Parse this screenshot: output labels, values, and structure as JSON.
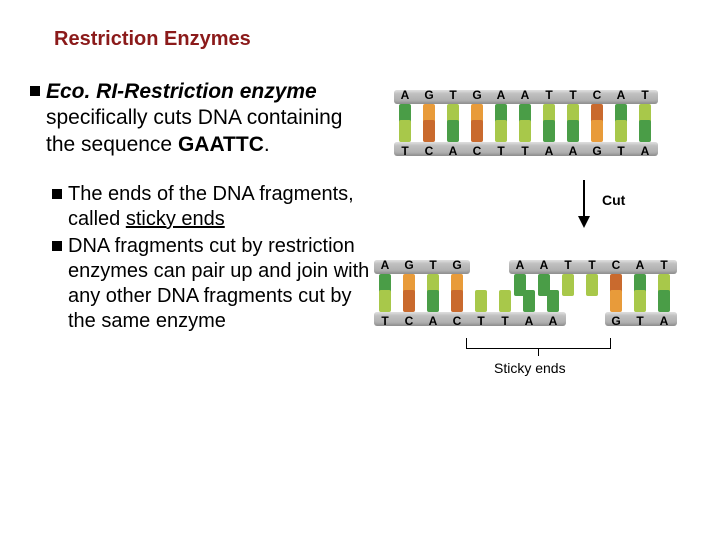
{
  "title": "Restriction Enzymes",
  "main_bullet": {
    "bold_lead": "Eco. RI-Restriction enzyme",
    "rest_lines": "specifically cuts DNA containing the sequence",
    "bold_tail": "GAATTC"
  },
  "sub_bullets": [
    {
      "pre": "The ends of the DNA fragments, called ",
      "underlined": "sticky ends",
      "post": ""
    },
    {
      "pre": "DNA fragments cut by restriction enzymes can pair up and join with any other DNA fragments cut by the same enzyme",
      "underlined": "",
      "post": ""
    }
  ],
  "diagram": {
    "top_seq": [
      "A",
      "G",
      "T",
      "G",
      "A",
      "A",
      "T",
      "T",
      "C",
      "A",
      "T"
    ],
    "bot_seq": [
      "T",
      "C",
      "A",
      "C",
      "T",
      "T",
      "A",
      "A",
      "G",
      "T",
      "A"
    ],
    "cut_label": "Cut",
    "sticky_label": "Sticky ends",
    "left_frag_top": [
      "A",
      "G",
      "T",
      "G"
    ],
    "left_frag_bot": [
      "T",
      "C",
      "A",
      "C",
      "T",
      "T",
      "A",
      "A"
    ],
    "right_frag_top": [
      "A",
      "A",
      "T",
      "T",
      "C",
      "A",
      "T"
    ],
    "right_frag_bot": [
      "G",
      "T",
      "A"
    ],
    "base_colors": {
      "A": "#4a9d47",
      "T": "#a8c84a",
      "G": "#e89b3a",
      "C": "#c96a2e"
    },
    "strand_color_top": "#bfbfbf",
    "strand_color_bot": "#bfbfbf"
  }
}
